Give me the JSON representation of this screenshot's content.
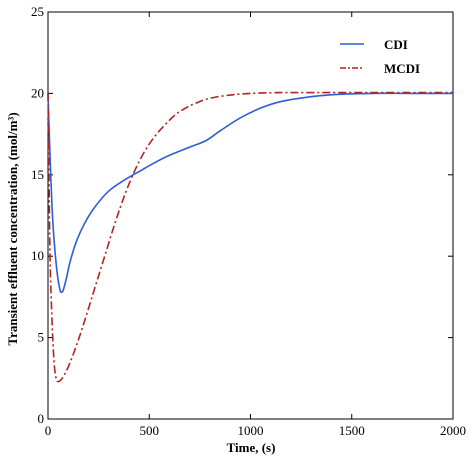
{
  "chart_data": {
    "type": "line",
    "xlabel": "Time, (s)",
    "ylabel": "Transient effluent concentration, (mol/m³)",
    "xlim": [
      0,
      2000
    ],
    "ylim": [
      0,
      25
    ],
    "xticks": [
      0,
      500,
      1000,
      1500,
      2000
    ],
    "yticks": [
      0,
      5,
      10,
      15,
      20,
      25
    ],
    "grid": false,
    "legend_position": "top-right",
    "series": [
      {
        "name": "CDI",
        "color": "#2b5fd9",
        "style": "solid",
        "x": [
          0,
          5,
          12,
          20,
          30,
          45,
          60,
          68,
          75,
          90,
          110,
          140,
          180,
          230,
          300,
          380,
          450,
          520,
          600,
          700,
          780,
          850,
          950,
          1050,
          1150,
          1300,
          1450,
          1600,
          1800,
          2000
        ],
        "y": [
          20.0,
          18.0,
          15.5,
          13.0,
          11.0,
          9.0,
          7.9,
          7.8,
          7.9,
          8.6,
          9.7,
          10.9,
          12.0,
          13.0,
          14.0,
          14.7,
          15.2,
          15.7,
          16.2,
          16.7,
          17.1,
          17.7,
          18.5,
          19.1,
          19.5,
          19.8,
          19.95,
          20.0,
          20.0,
          20.0
        ]
      },
      {
        "name": "MCDI",
        "color": "#b22222",
        "style": "dash-dot",
        "x": [
          0,
          5,
          10,
          20,
          30,
          40,
          50,
          70,
          100,
          140,
          180,
          230,
          280,
          330,
          380,
          430,
          480,
          530,
          580,
          630,
          680,
          730,
          800,
          900,
          1000,
          1150,
          1300,
          1500,
          2000
        ],
        "y": [
          20.0,
          15.0,
          10.0,
          6.0,
          3.5,
          2.5,
          2.3,
          2.5,
          3.2,
          4.5,
          6.0,
          8.0,
          10.0,
          12.0,
          13.8,
          15.3,
          16.5,
          17.4,
          18.1,
          18.7,
          19.1,
          19.4,
          19.7,
          19.9,
          20.0,
          20.05,
          20.05,
          20.05,
          20.05
        ]
      }
    ]
  }
}
